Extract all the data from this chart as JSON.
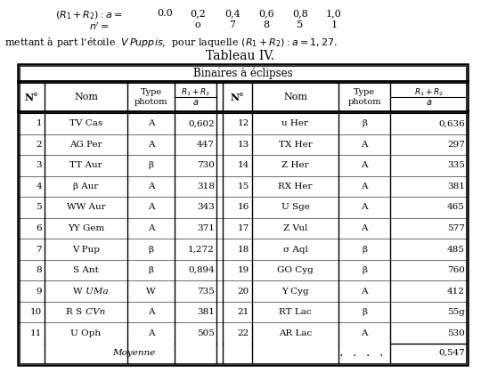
{
  "top_a_label": "$(R_1+R_2): a =$",
  "top_n_label": "$n^{\\prime} =$",
  "top_values_a": [
    "0.0",
    "0,2",
    "0,4",
    "0,6",
    "0,8",
    "1,0"
  ],
  "top_values_n": [
    "o",
    "7",
    "8",
    "5",
    "1"
  ],
  "subtitle": "mettant à part l’étoile  $V\\,Puppis$,  pour laquelle $(R_1+R_2): a = 1,27$.",
  "table_title": "Tableau IV.",
  "section_header": "Binaires à éclipses",
  "left_rows": [
    [
      "1",
      "TV Cas",
      "A",
      "0,602"
    ],
    [
      "2",
      "AG Per",
      "A",
      "447"
    ],
    [
      "3",
      "TT Aur",
      "β",
      "730"
    ],
    [
      "4",
      "β Aur",
      "A",
      "318"
    ],
    [
      "5",
      "WW Aur",
      "A",
      "343"
    ],
    [
      "6",
      "YY Gem",
      "A",
      "371"
    ],
    [
      "7",
      "V Pup",
      "β",
      "1,272"
    ],
    [
      "8",
      "S Ant",
      "β",
      "0,894"
    ],
    [
      "9",
      "W UMa",
      "W",
      "735"
    ],
    [
      "10",
      "R S CVn",
      "A",
      "381"
    ],
    [
      "11",
      "U Oph",
      "A",
      "505"
    ]
  ],
  "right_rows": [
    [
      "12",
      "u Her",
      "β",
      "0,636"
    ],
    [
      "13",
      "TX Her",
      "A",
      "297"
    ],
    [
      "14",
      "Z Her",
      "A",
      "335"
    ],
    [
      "15",
      "RX Her",
      "A",
      "381"
    ],
    [
      "16",
      "U Sge",
      "A",
      "465"
    ],
    [
      "17",
      "Z Vul",
      "A",
      "577"
    ],
    [
      "18",
      "σ Aql",
      "β",
      "485"
    ],
    [
      "19",
      "GO Cyg",
      "β",
      "760"
    ],
    [
      "20",
      "Y Cyg",
      "A",
      "412"
    ],
    [
      "21",
      "RT Lac",
      "β",
      "55g"
    ],
    [
      "22",
      "AR Lac",
      "A",
      "530"
    ]
  ],
  "moyenne_label": "Moyenne",
  "moyenne_dots": ". . . .",
  "moyenne_value": "0,547",
  "bg_color": "#ffffff",
  "text_color": "#000000"
}
